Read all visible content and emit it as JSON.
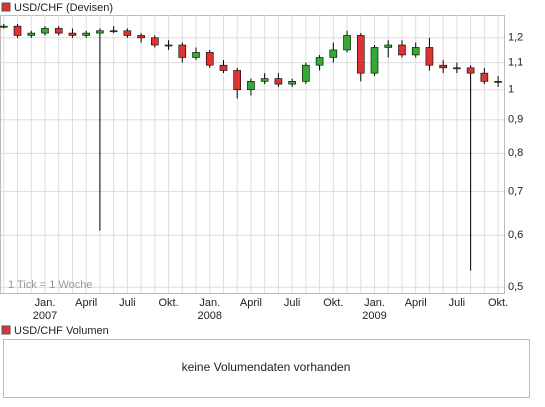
{
  "chart_data": {
    "type": "candlestick",
    "legend": "USD/CHF (Devisen)",
    "note": "1 Tick = 1 Woche",
    "up_color": "#33aa33",
    "down_color": "#dd3333",
    "log_scale": true,
    "grid": true,
    "categories": [
      null,
      null,
      null,
      "Jan.",
      null,
      null,
      "April",
      null,
      null,
      "Juli",
      null,
      null,
      "Okt.",
      null,
      null,
      "Jan.",
      null,
      null,
      "April",
      null,
      null,
      "Juli",
      null,
      null,
      "Okt.",
      null,
      null,
      "Jan.",
      null,
      null,
      "April",
      null,
      null,
      "Juli",
      null,
      null,
      "Okt."
    ],
    "year_labels": [
      null,
      null,
      null,
      "2007",
      null,
      null,
      null,
      null,
      null,
      null,
      null,
      null,
      null,
      null,
      null,
      "2008",
      null,
      null,
      null,
      null,
      null,
      null,
      null,
      null,
      null,
      null,
      null,
      "2009",
      null,
      null,
      null,
      null,
      null,
      null,
      null,
      null,
      null
    ],
    "open": [
      1.25,
      1.25,
      1.21,
      1.22,
      1.24,
      1.22,
      1.21,
      1.22,
      1.23,
      1.23,
      1.21,
      1.2,
      1.17,
      1.17,
      1.12,
      1.14,
      1.09,
      1.07,
      1.0,
      1.03,
      1.04,
      1.02,
      1.03,
      1.09,
      1.12,
      1.15,
      1.21,
      1.06,
      1.16,
      1.17,
      1.13,
      1.16,
      1.09,
      1.08,
      1.08,
      1.06,
      1.03
    ],
    "high": [
      1.26,
      1.26,
      1.23,
      1.25,
      1.25,
      1.24,
      1.23,
      1.24,
      1.25,
      1.24,
      1.22,
      1.21,
      1.19,
      1.18,
      1.16,
      1.15,
      1.11,
      1.08,
      1.04,
      1.06,
      1.06,
      1.04,
      1.1,
      1.13,
      1.18,
      1.23,
      1.22,
      1.17,
      1.19,
      1.19,
      1.18,
      1.2,
      1.11,
      1.1,
      1.09,
      1.08,
      1.05
    ],
    "low": [
      1.24,
      1.2,
      1.2,
      1.21,
      1.21,
      1.2,
      1.2,
      0.61,
      1.22,
      1.2,
      1.18,
      1.16,
      1.15,
      1.1,
      1.11,
      1.08,
      1.06,
      0.97,
      0.98,
      1.02,
      1.01,
      1.01,
      1.02,
      1.07,
      1.1,
      1.14,
      1.03,
      1.05,
      1.12,
      1.12,
      1.12,
      1.07,
      1.06,
      1.06,
      0.53,
      1.02,
      1.01
    ],
    "close": [
      1.25,
      1.21,
      1.22,
      1.24,
      1.22,
      1.21,
      1.22,
      1.23,
      1.23,
      1.21,
      1.2,
      1.17,
      1.17,
      1.12,
      1.14,
      1.09,
      1.07,
      1.0,
      1.03,
      1.04,
      1.02,
      1.03,
      1.09,
      1.12,
      1.15,
      1.21,
      1.06,
      1.16,
      1.17,
      1.13,
      1.16,
      1.09,
      1.08,
      1.08,
      1.06,
      1.03,
      1.03
    ],
    "ylim": [
      0.49,
      1.3
    ],
    "yticks": [
      {
        "value": 1.2,
        "label": "1,2"
      },
      {
        "value": 1.1,
        "label": "1,1"
      },
      1,
      {
        "value": 0.9,
        "label": "0,9"
      },
      {
        "value": 0.8,
        "label": "0,8"
      },
      {
        "value": 0.7,
        "label": "0,7"
      },
      {
        "value": 0.6,
        "label": "0,6"
      },
      {
        "value": 0.5,
        "label": "0,5"
      }
    ]
  },
  "volume_panel": {
    "legend": "USD/CHF Volumen",
    "message": "keine Volumendaten vorhanden"
  }
}
